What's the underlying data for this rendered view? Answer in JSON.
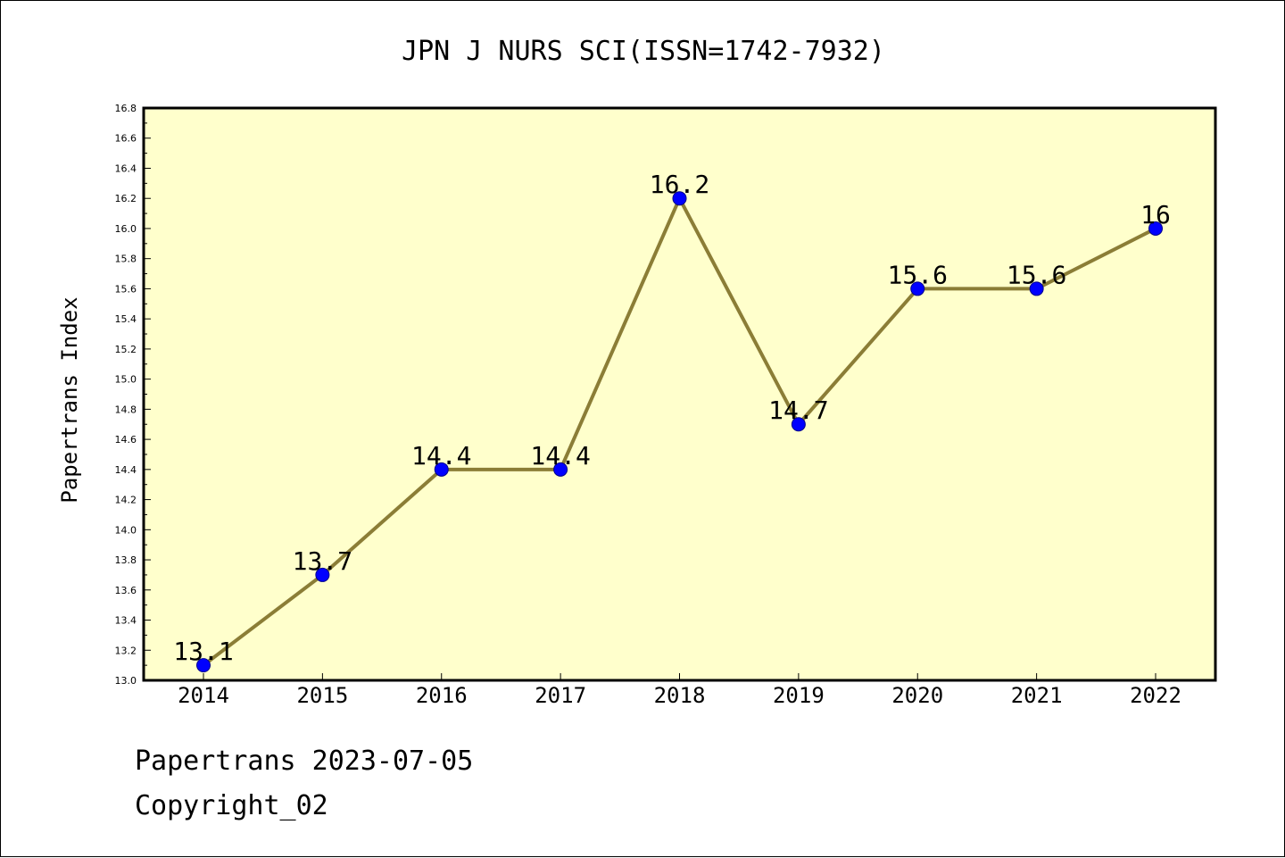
{
  "chart_data": {
    "type": "line",
    "title": "JPN J NURS SCI(ISSN=1742-7932)",
    "ylabel": "Papertrans Index",
    "xlabel": "",
    "categories": [
      "2014",
      "2015",
      "2016",
      "2017",
      "2018",
      "2019",
      "2020",
      "2021",
      "2022"
    ],
    "values": [
      13.1,
      13.7,
      14.4,
      14.4,
      16.2,
      14.7,
      15.6,
      15.6,
      16
    ],
    "data_labels": [
      "13.1",
      "13.7",
      "14.4",
      "14.4",
      "16.2",
      "14.7",
      "15.6",
      "15.6",
      "16"
    ],
    "ylim": [
      13.0,
      16.8
    ],
    "yticks": [
      "13.0",
      "13.2",
      "13.4",
      "13.6",
      "13.8",
      "14.0",
      "14.2",
      "14.4",
      "14.6",
      "14.8",
      "15.0",
      "15.2",
      "15.4",
      "15.6",
      "15.8",
      "16.0",
      "16.2",
      "16.4",
      "16.6",
      "16.8"
    ],
    "grid": false,
    "colors": {
      "plot_background": "#ffffcc",
      "line": "#8b7d36",
      "marker": "#0000ff",
      "marker_edge": "#00008b"
    }
  },
  "footer": {
    "line1": "Papertrans 2023-07-05",
    "line2": "Copyright_02"
  }
}
